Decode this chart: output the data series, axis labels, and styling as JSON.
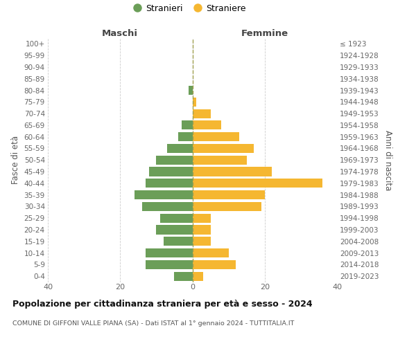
{
  "age_groups": [
    "100+",
    "95-99",
    "90-94",
    "85-89",
    "80-84",
    "75-79",
    "70-74",
    "65-69",
    "60-64",
    "55-59",
    "50-54",
    "45-49",
    "40-44",
    "35-39",
    "30-34",
    "25-29",
    "20-24",
    "15-19",
    "10-14",
    "5-9",
    "0-4"
  ],
  "birth_years": [
    "≤ 1923",
    "1924-1928",
    "1929-1933",
    "1934-1938",
    "1939-1943",
    "1944-1948",
    "1949-1953",
    "1954-1958",
    "1959-1963",
    "1964-1968",
    "1969-1973",
    "1974-1978",
    "1979-1983",
    "1984-1988",
    "1989-1993",
    "1994-1998",
    "1999-2003",
    "2004-2008",
    "2009-2013",
    "2014-2018",
    "2019-2023"
  ],
  "males": [
    0,
    0,
    0,
    0,
    1,
    0,
    0,
    3,
    4,
    7,
    10,
    12,
    13,
    16,
    14,
    9,
    10,
    8,
    13,
    13,
    5
  ],
  "females": [
    0,
    0,
    0,
    0,
    0,
    1,
    5,
    8,
    13,
    17,
    15,
    22,
    36,
    20,
    19,
    5,
    5,
    5,
    10,
    12,
    3
  ],
  "male_color": "#6b9e58",
  "female_color": "#f5b731",
  "background_color": "#ffffff",
  "grid_color": "#cccccc",
  "dashed_line_color": "#a0a050",
  "title": "Popolazione per cittadinanza straniera per età e sesso - 2024",
  "subtitle": "COMUNE DI GIFFONI VALLE PIANA (SA) - Dati ISTAT al 1° gennaio 2024 - TUTTITALIA.IT",
  "xlabel_left": "Maschi",
  "xlabel_right": "Femmine",
  "ylabel_left": "Fasce di età",
  "ylabel_right": "Anni di nascita",
  "xlim": 40,
  "legend_stranieri": "Stranieri",
  "legend_straniere": "Straniere"
}
